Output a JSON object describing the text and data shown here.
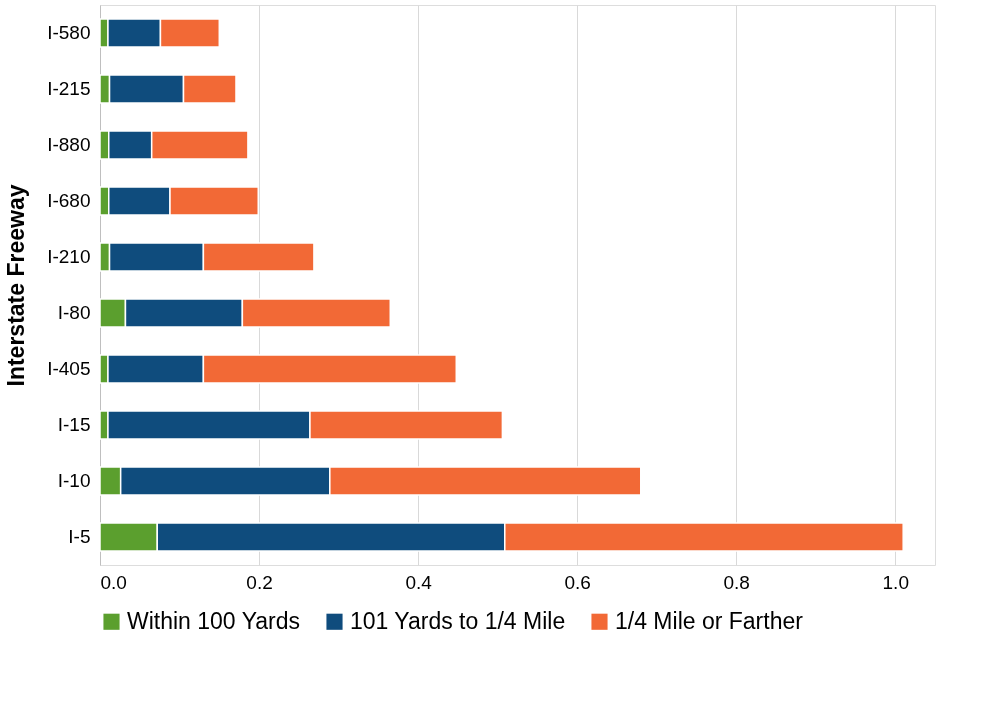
{
  "chart_data": {
    "type": "bar",
    "orientation": "horizontal",
    "stacked": true,
    "ylabel": "Interstate Freeway",
    "categories": [
      "I-580",
      "I-215",
      "I-880",
      "I-680",
      "I-210",
      "I-80",
      "I-405",
      "I-15",
      "I-10",
      "I-5"
    ],
    "series": [
      {
        "name": "Within 100 Yards",
        "color": "#5b9f2e",
        "values": [
          0.01,
          0.012,
          0.011,
          0.011,
          0.012,
          0.032,
          0.01,
          0.01,
          0.026,
          0.072
        ]
      },
      {
        "name": "101 Yards to 1/4 Mile",
        "color": "#0f4c7d",
        "values": [
          0.066,
          0.093,
          0.054,
          0.077,
          0.118,
          0.147,
          0.12,
          0.254,
          0.263,
          0.437
        ]
      },
      {
        "name": "1/4 Mile or Farther",
        "color": "#f26936",
        "values": [
          0.074,
          0.066,
          0.121,
          0.111,
          0.139,
          0.186,
          0.318,
          0.242,
          0.391,
          0.501
        ]
      }
    ],
    "xlim": [
      0,
      1.05
    ],
    "xticks": [
      {
        "value": 0,
        "label": "0.0"
      },
      0.2,
      0.4,
      0.6,
      0.8,
      {
        "value": 1,
        "label": "1.0"
      }
    ],
    "grid": "x",
    "legend": "bottom"
  }
}
